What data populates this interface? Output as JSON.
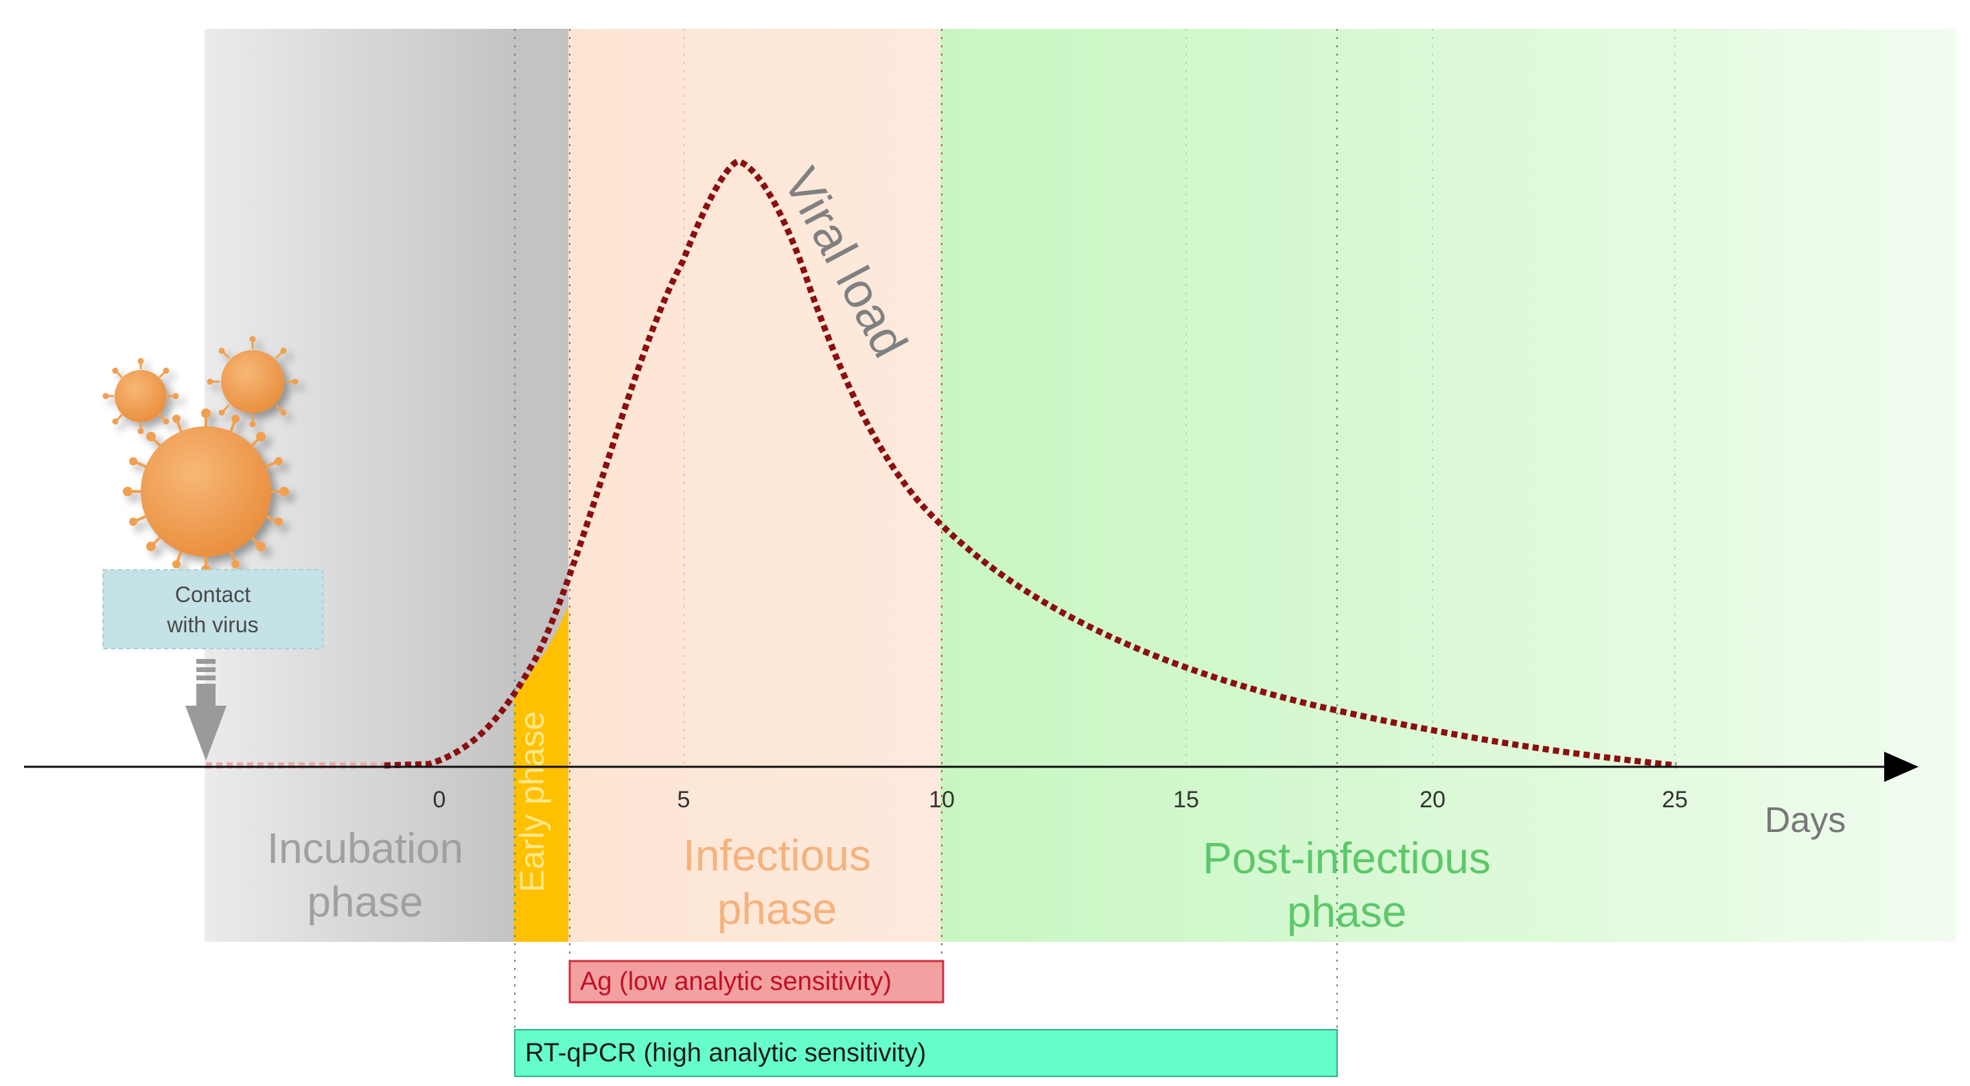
{
  "phases": {
    "incubation_line1": "Incubation",
    "incubation_line2": "phase",
    "early": "Early phase",
    "infectious_line1": "Infectious",
    "infectious_line2": "phase",
    "post_line1": "Post-infectious",
    "post_line2": "phase"
  },
  "contact_line1": "Contact",
  "contact_line2": "with virus",
  "curve_label": "Viral load",
  "axis": {
    "unit": "Days",
    "ticks": [
      "0",
      "5",
      "10",
      "15",
      "20",
      "25"
    ]
  },
  "tests": {
    "ag": "Ag (low analytic sensitivity)",
    "rtqpcr": "RT-qPCR (high analytic sensitivity)"
  },
  "colors": {
    "incubation": "#cfcfcf",
    "early": "#ffc000",
    "infectious": "#fde6d6",
    "post_infectious": "#c9f5c3",
    "curve": "#8b0f0f",
    "virus": "#f0a050",
    "contact_box": "#c5e3e6",
    "ag_box": "#f3a0a0",
    "rtqpcr_box": "#66ffcc"
  },
  "icons": [
    "virus-icon",
    "down-arrow-icon"
  ]
}
